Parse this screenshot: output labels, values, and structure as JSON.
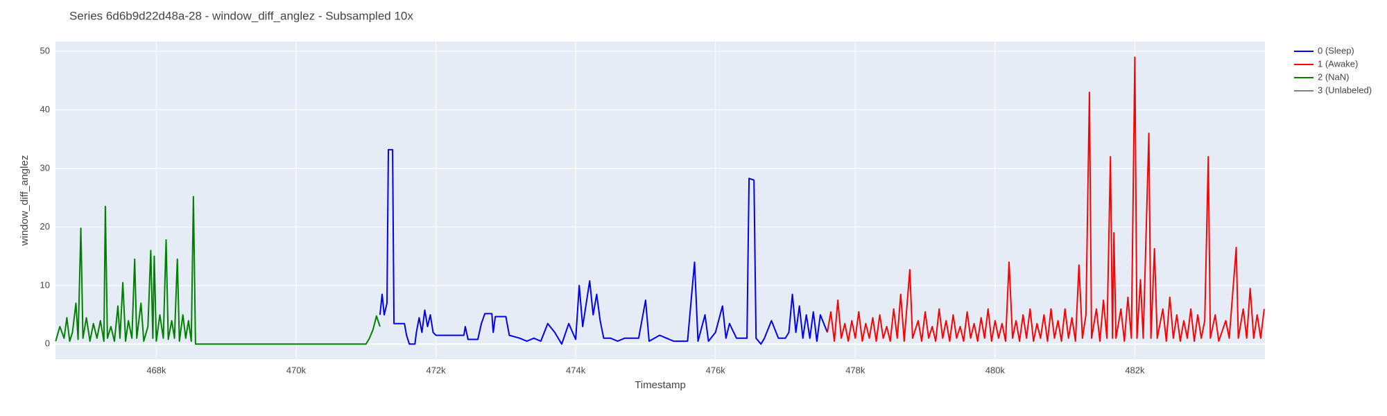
{
  "chart_data": {
    "type": "line",
    "title": "Series 6d6b9d22d48a-28 - window_diff_anglez - Subsampled 10x",
    "x_label": "Timestamp",
    "y_label": "window_diff_anglez",
    "xlim": [
      466557,
      483861
    ],
    "ylim": [
      -2.57,
      51.66
    ],
    "xticks": [
      {
        "value": 468000,
        "label": "468k"
      },
      {
        "value": 470000,
        "label": "470k"
      },
      {
        "value": 472000,
        "label": "472k"
      },
      {
        "value": 474000,
        "label": "474k"
      },
      {
        "value": 476000,
        "label": "476k"
      },
      {
        "value": 478000,
        "label": "478k"
      },
      {
        "value": 480000,
        "label": "480k"
      },
      {
        "value": 482000,
        "label": "482k"
      }
    ],
    "yticks": [
      0,
      10,
      20,
      30,
      40,
      50
    ],
    "grid": true,
    "legend": "outside-right",
    "series": [
      {
        "name": "0 (Sleep)",
        "color": "#0000ee",
        "x": [
          471200,
          471230,
          471260,
          471300,
          471320,
          471380,
          471400,
          471550,
          471580,
          471620,
          471700,
          471720,
          471760,
          471800,
          471840,
          471880,
          471920,
          471960,
          472000,
          472400,
          472420,
          472460,
          472600,
          472650,
          472700,
          472800,
          472820,
          472850,
          473000,
          473050,
          473200,
          473300,
          473400,
          473500,
          473600,
          473700,
          473800,
          473900,
          474000,
          474050,
          474100,
          474200,
          474250,
          474300,
          474350,
          474400,
          474500,
          474600,
          474700,
          474900,
          475000,
          475050,
          475200,
          475400,
          475600,
          475700,
          475750,
          475850,
          475900,
          476000,
          476100,
          476150,
          476200,
          476300,
          476450,
          476480,
          476550,
          476580,
          476650,
          476700,
          476800,
          476900,
          477000,
          477050,
          477100,
          477150,
          477200,
          477250,
          477300,
          477350,
          477400,
          477450,
          477500,
          477600
        ],
        "values": [
          5,
          8.5,
          5,
          7,
          33.2,
          33.2,
          3.5,
          3.5,
          1.5,
          0,
          0,
          2,
          4.5,
          2,
          5.8,
          3,
          5,
          2,
          1.5,
          1.5,
          3,
          0.8,
          0.8,
          3.5,
          5.2,
          5.2,
          2,
          4.7,
          4.7,
          1.5,
          1,
          0.5,
          1,
          0.5,
          3.5,
          2,
          0,
          3.5,
          0.8,
          10,
          3,
          10.8,
          5,
          8.5,
          4,
          1,
          1,
          0.5,
          1,
          1,
          7.5,
          0.5,
          1.5,
          0.5,
          0.5,
          14,
          0.5,
          5,
          0.5,
          2,
          6.5,
          1,
          3.5,
          1,
          1,
          28.3,
          28,
          1,
          0,
          1,
          4,
          1,
          1,
          2,
          8.5,
          2,
          6.5,
          1,
          5,
          1,
          5.5,
          0.5,
          5,
          2
        ]
      },
      {
        "name": "1 (Awake)",
        "color": "#ff0000",
        "x": [
          477600,
          477650,
          477700,
          477750,
          477800,
          477850,
          477900,
          477950,
          478000,
          478050,
          478100,
          478150,
          478200,
          478250,
          478300,
          478350,
          478400,
          478450,
          478500,
          478550,
          478600,
          478650,
          478700,
          478780,
          478820,
          478900,
          478950,
          479000,
          479050,
          479100,
          479150,
          479200,
          479250,
          479300,
          479350,
          479400,
          479450,
          479500,
          479550,
          479600,
          479650,
          479700,
          479750,
          479800,
          479850,
          479900,
          479950,
          480000,
          480050,
          480100,
          480150,
          480200,
          480250,
          480300,
          480350,
          480400,
          480450,
          480500,
          480550,
          480600,
          480650,
          480700,
          480750,
          480800,
          480850,
          480900,
          480950,
          481000,
          481050,
          481100,
          481150,
          481200,
          481250,
          481300,
          481350,
          481380,
          481450,
          481500,
          481550,
          481600,
          481650,
          481680,
          481700,
          481730,
          481800,
          481850,
          481900,
          481950,
          482000,
          482030,
          482080,
          482120,
          482200,
          482230,
          482280,
          482320,
          482400,
          482450,
          482500,
          482550,
          482600,
          482650,
          482700,
          482750,
          482800,
          482850,
          482900,
          482950,
          483000,
          483050,
          483080,
          483150,
          483200,
          483300,
          483350,
          483450,
          483480,
          483550,
          483600,
          483650,
          483700,
          483750,
          483800,
          483850
        ],
        "values": [
          2,
          5.5,
          0.5,
          7.5,
          1,
          3.5,
          0.5,
          4,
          1,
          5.5,
          0.5,
          3.5,
          1,
          4.5,
          0.5,
          5,
          1,
          3,
          0.5,
          6,
          1,
          8.5,
          0.5,
          12.7,
          1,
          4,
          0.5,
          5.5,
          1,
          3,
          0.5,
          6,
          1,
          4,
          0.5,
          5,
          1,
          3,
          0.5,
          5.5,
          1,
          3.5,
          0.5,
          4.5,
          1,
          6,
          0.5,
          4,
          1,
          3.5,
          0.5,
          14,
          1,
          4,
          0.5,
          5,
          1,
          6,
          0.5,
          3.5,
          1,
          5,
          0.5,
          6,
          1,
          4,
          0.5,
          6,
          1,
          4.5,
          0.5,
          13.5,
          1,
          5,
          43,
          1,
          6,
          0.5,
          7.5,
          1,
          32,
          1,
          19,
          1,
          6,
          0.5,
          8,
          1,
          49,
          1,
          11,
          1,
          36,
          1,
          16.3,
          1,
          6,
          0.5,
          8,
          1,
          5,
          0.5,
          4,
          1,
          6,
          0.5,
          5,
          1,
          4,
          32,
          1,
          5,
          0.5,
          4,
          1,
          16.5,
          1,
          6,
          1,
          9.5,
          1,
          5,
          1,
          6
        ]
      },
      {
        "name": "2 (NaN)",
        "color": "#008000",
        "x": [
          466560,
          466620,
          466680,
          466720,
          466760,
          466800,
          466850,
          466880,
          466920,
          466950,
          467000,
          467050,
          467100,
          467150,
          467200,
          467250,
          467270,
          467300,
          467350,
          467400,
          467450,
          467480,
          467520,
          467560,
          467600,
          467650,
          467690,
          467720,
          467780,
          467820,
          467880,
          467920,
          467950,
          467970,
          468000,
          468050,
          468100,
          468140,
          468170,
          468220,
          468260,
          468300,
          468330,
          468380,
          468420,
          468460,
          468500,
          468530,
          468560,
          471000,
          471050,
          471100,
          471150,
          471200
        ],
        "values": [
          0.5,
          3,
          1,
          4.5,
          0.5,
          2,
          7,
          0.8,
          19.8,
          1,
          4.5,
          0.5,
          3.5,
          1,
          4,
          0.5,
          23.5,
          1,
          3,
          0.5,
          6.5,
          1,
          10.5,
          0.5,
          4,
          1,
          14.5,
          1,
          7,
          0.5,
          3,
          16,
          1,
          15,
          0.5,
          5,
          1,
          17.8,
          0.8,
          4,
          1,
          14.5,
          0.5,
          5,
          1,
          4,
          0.5,
          25.2,
          0,
          0,
          1,
          2.5,
          4.8,
          3
        ]
      },
      {
        "name": "3 (Unlabeled)",
        "color": "#808080",
        "x": [],
        "values": []
      }
    ]
  }
}
